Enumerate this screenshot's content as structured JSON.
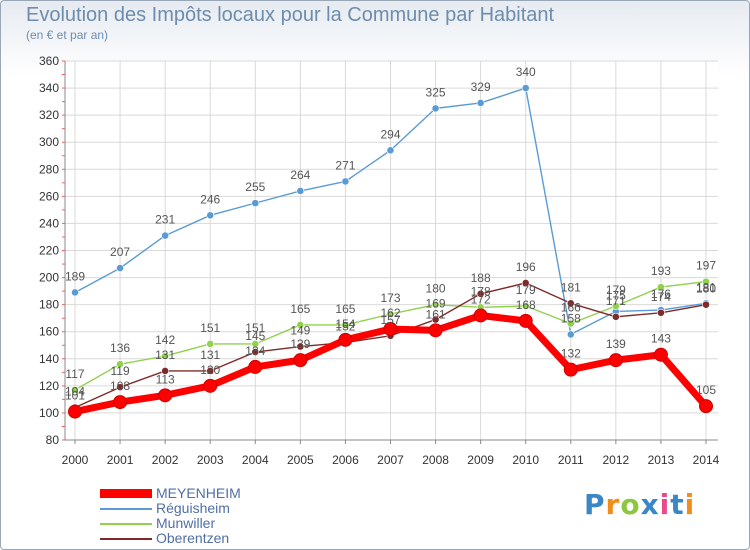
{
  "chart_data": {
    "type": "line",
    "title": "Evolution des Impôts locaux pour la Commune par Habitant",
    "subtitle": "(en € et par an)",
    "xlabel": "",
    "ylabel": "",
    "ylim": [
      80,
      360
    ],
    "y_ticks": [
      80,
      100,
      120,
      140,
      160,
      180,
      200,
      220,
      240,
      260,
      280,
      300,
      320,
      340,
      360
    ],
    "categories": [
      "2000",
      "2001",
      "2002",
      "2003",
      "2004",
      "2005",
      "2006",
      "2007",
      "2008",
      "2009",
      "2010",
      "2011",
      "2012",
      "2013",
      "2014"
    ],
    "series": [
      {
        "name": "MEYENHEIM",
        "color": "#ff0000",
        "values": [
          101,
          108,
          113,
          120,
          134,
          139,
          154,
          162,
          161,
          172,
          168,
          132,
          139,
          143,
          105
        ]
      },
      {
        "name": "Réguisheim",
        "color": "#5b9bd5",
        "values": [
          189,
          207,
          231,
          246,
          255,
          264,
          271,
          294,
          325,
          329,
          340,
          158,
          175,
          176,
          181
        ]
      },
      {
        "name": "Munwiller",
        "color": "#92d050",
        "values": [
          117,
          136,
          142,
          151,
          151,
          165,
          165,
          173,
          180,
          178,
          179,
          166,
          179,
          193,
          197
        ]
      },
      {
        "name": "Oberentzen",
        "color": "#7f2a2a",
        "values": [
          104,
          119,
          131,
          131,
          145,
          149,
          152,
          157,
          169,
          188,
          196,
          181,
          171,
          174,
          180
        ]
      }
    ],
    "grid": true,
    "legend_position": "bottom-left"
  },
  "logo_text": "Proxiti",
  "logo_colors": [
    "#3a87c8",
    "#f28c1a",
    "#8dc63f",
    "#3a87c8",
    "#e84a8a",
    "#3a87c8",
    "#f28c1a"
  ]
}
